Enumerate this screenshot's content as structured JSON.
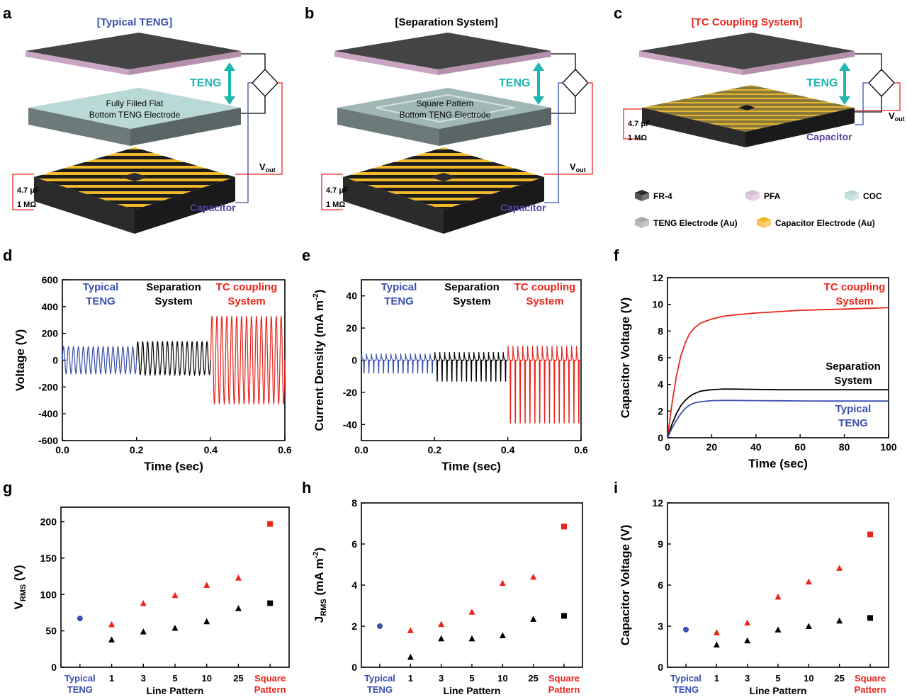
{
  "colors": {
    "typical": "#3a4fb0",
    "separation": "#000000",
    "tc": "#e8261c",
    "cyan": "#1fb6b0",
    "capacitor_label": "#5a3fa8",
    "fr4": "#2b2b2b",
    "pfa": "#d8bcd0",
    "coc": "#b8d8d6",
    "teng_elec": "#a8a8a8",
    "cap_elec": "#f2b82a"
  },
  "panels": {
    "a": {
      "letter": "a",
      "title": "[Typical TENG]",
      "teng": "TENG",
      "electrode_line1": "Fully Filled Flat",
      "electrode_line2": "Bottom TENG Electrode",
      "vout_v": "V",
      "vout_sub": "out",
      "cap_label": "Capacitor",
      "c_value": "4.7 μF",
      "r_value": "1 MΩ"
    },
    "b": {
      "letter": "b",
      "title": "[Separation System]",
      "teng": "TENG",
      "electrode_line1": "Square Pattern",
      "electrode_line2": "Bottom TENG Electrode",
      "vout_v": "V",
      "vout_sub": "out",
      "cap_label": "Capacitor",
      "c_value": "4.7 μF",
      "r_value": "1 MΩ"
    },
    "c": {
      "letter": "c",
      "title": "[TC Coupling System]",
      "teng": "TENG",
      "vout_v": "V",
      "vout_sub": "out",
      "cap_label": "Capacitor",
      "c_value": "4.7 μF",
      "r_value": "1 MΩ"
    }
  },
  "legend_c": [
    {
      "label": "FR-4",
      "color_key": "fr4"
    },
    {
      "label": "PFA",
      "color_key": "pfa"
    },
    {
      "label": "COC",
      "color_key": "coc"
    },
    {
      "label": "TENG Electrode (Au)",
      "color_key": "teng_elec"
    },
    {
      "label": "Capacitor Electrode (Au)",
      "color_key": "cap_elec"
    }
  ],
  "chart_data": [
    {
      "panel": "d",
      "type": "line",
      "ylabel": "Voltage (V)",
      "xlabel": "Time (sec)",
      "xlim": [
        0.0,
        0.6
      ],
      "ylim": [
        -600,
        600
      ],
      "xticks": [
        "0.0",
        "0.2",
        "0.4",
        "0.6"
      ],
      "yticks": [
        "-600",
        "-400",
        "-200",
        "0",
        "200",
        "400",
        "600"
      ],
      "series": [
        {
          "group": "Typical TENG",
          "x_range": [
            0.0,
            0.2
          ],
          "cycles": 15,
          "max": 100,
          "min": -100
        },
        {
          "group": "Separation System",
          "x_range": [
            0.2,
            0.4
          ],
          "cycles": 15,
          "max": 140,
          "min": -110
        },
        {
          "group": "TC coupling System",
          "x_range": [
            0.4,
            0.6
          ],
          "cycles": 15,
          "max": 330,
          "min": -330
        }
      ],
      "labels": [
        {
          "line1": "Typical",
          "line2": "TENG",
          "color_key": "typical"
        },
        {
          "line1": "Separation",
          "line2": "System",
          "color_key": "separation"
        },
        {
          "line1": "TC coupling",
          "line2": "System",
          "color_key": "tc"
        }
      ]
    },
    {
      "panel": "e",
      "type": "line",
      "ylabel_main": "Current Density (mA m",
      "ylabel_sup": "-2",
      "ylabel_end": ")",
      "xlabel": "Time (sec)",
      "xlim": [
        0.0,
        0.6
      ],
      "ylim": [
        -50,
        50
      ],
      "xticks": [
        "0.0",
        "0.2",
        "0.4",
        "0.6"
      ],
      "yticks": [
        "-40",
        "-20",
        "0",
        "20",
        "40"
      ],
      "series": [
        {
          "group": "Typical TENG",
          "x_range": [
            0.0,
            0.2
          ],
          "cycles": 15,
          "max": 4,
          "min": -8
        },
        {
          "group": "Separation System",
          "x_range": [
            0.2,
            0.4
          ],
          "cycles": 15,
          "max": 5,
          "min": -13
        },
        {
          "group": "TC coupling System",
          "x_range": [
            0.4,
            0.6
          ],
          "cycles": 15,
          "max": 9,
          "min": -39
        }
      ],
      "labels": [
        {
          "line1": "Typical",
          "line2": "TENG",
          "color_key": "typical"
        },
        {
          "line1": "Separation",
          "line2": "System",
          "color_key": "separation"
        },
        {
          "line1": "TC coupling",
          "line2": "System",
          "color_key": "tc"
        }
      ]
    },
    {
      "panel": "f",
      "type": "line",
      "ylabel": "Capacitor Voltage (V)",
      "xlabel": "Time (sec)",
      "xlim": [
        0,
        100
      ],
      "ylim": [
        0,
        12
      ],
      "xticks": [
        "0",
        "20",
        "40",
        "60",
        "80",
        "100"
      ],
      "yticks": [
        "0",
        "2",
        "4",
        "6",
        "8",
        "10",
        "12"
      ],
      "series": [
        {
          "group": "TC coupling System",
          "x": [
            0,
            2,
            4,
            6,
            8,
            10,
            12,
            15,
            20,
            25,
            30,
            40,
            50,
            60,
            70,
            80,
            90,
            100
          ],
          "y": [
            0,
            2.5,
            4.6,
            6.1,
            7.1,
            7.8,
            8.2,
            8.6,
            8.9,
            9.1,
            9.2,
            9.35,
            9.45,
            9.55,
            9.6,
            9.65,
            9.7,
            9.75
          ]
        },
        {
          "group": "Separation System",
          "x": [
            0,
            2,
            4,
            6,
            8,
            10,
            12,
            15,
            20,
            25,
            30,
            40,
            50,
            60,
            70,
            80,
            90,
            100
          ],
          "y": [
            0,
            1.0,
            1.8,
            2.4,
            2.8,
            3.1,
            3.3,
            3.5,
            3.6,
            3.65,
            3.65,
            3.62,
            3.6,
            3.6,
            3.6,
            3.6,
            3.6,
            3.6
          ]
        },
        {
          "group": "Typical TENG",
          "x": [
            0,
            2,
            4,
            6,
            8,
            10,
            12,
            15,
            20,
            25,
            30,
            40,
            50,
            60,
            70,
            80,
            90,
            100
          ],
          "y": [
            0,
            0.7,
            1.3,
            1.8,
            2.2,
            2.45,
            2.6,
            2.7,
            2.78,
            2.8,
            2.8,
            2.78,
            2.77,
            2.76,
            2.75,
            2.75,
            2.75,
            2.75
          ]
        }
      ],
      "labels": [
        {
          "line1": "TC coupling",
          "line2": "System",
          "color_key": "tc"
        },
        {
          "line1": "Separation",
          "line2": "System",
          "color_key": "separation"
        },
        {
          "line1": "Typical",
          "line2": "TENG",
          "color_key": "typical"
        }
      ]
    },
    {
      "panel": "g",
      "type": "scatter",
      "ylabel_main": "V",
      "ylabel_sub": "RMS",
      "ylabel_end": " (V)",
      "xlabel": "Line Pattern",
      "ylim": [
        0,
        220
      ],
      "yticks": [
        "0",
        "50",
        "100",
        "150",
        "200"
      ],
      "categories": [
        "Typical TENG",
        "1",
        "3",
        "5",
        "10",
        "25",
        "Square Pattern"
      ],
      "cat_lines": [
        [
          "Typical",
          "TENG"
        ],
        [
          "1"
        ],
        [
          "3"
        ],
        [
          "5"
        ],
        [
          "10"
        ],
        [
          "25"
        ],
        [
          "Square",
          "Pattern"
        ]
      ],
      "series": [
        {
          "group": "Typical TENG",
          "points": [
            [
              0,
              67
            ]
          ]
        },
        {
          "group": "Line pattern TC",
          "points": [
            [
              1,
              59
            ],
            [
              2,
              88
            ],
            [
              3,
              99
            ],
            [
              4,
              113
            ],
            [
              5,
              123
            ]
          ]
        },
        {
          "group": "Line pattern separation",
          "points": [
            [
              1,
              38
            ],
            [
              2,
              49
            ],
            [
              3,
              54
            ],
            [
              4,
              63
            ],
            [
              5,
              81
            ]
          ]
        },
        {
          "group": "Square pattern TC",
          "points": [
            [
              6,
              197
            ]
          ]
        },
        {
          "group": "Square pattern separation",
          "points": [
            [
              6,
              88
            ]
          ]
        }
      ]
    },
    {
      "panel": "h",
      "type": "scatter",
      "ylabel_main": "J",
      "ylabel_sub": "RMS",
      "ylabel_mid": " (mA m",
      "ylabel_sup": "-2",
      "ylabel_end": ")",
      "xlabel": "Line Pattern",
      "ylim": [
        0,
        8
      ],
      "yticks": [
        "0",
        "2",
        "4",
        "6",
        "8"
      ],
      "categories": [
        "Typical TENG",
        "1",
        "3",
        "5",
        "10",
        "25",
        "Square Pattern"
      ],
      "cat_lines": [
        [
          "Typical",
          "TENG"
        ],
        [
          "1"
        ],
        [
          "3"
        ],
        [
          "5"
        ],
        [
          "10"
        ],
        [
          "25"
        ],
        [
          "Square",
          "Pattern"
        ]
      ],
      "series": [
        {
          "group": "Typical TENG",
          "points": [
            [
              0,
              2.0
            ]
          ]
        },
        {
          "group": "Line pattern TC",
          "points": [
            [
              1,
              1.8
            ],
            [
              2,
              2.1
            ],
            [
              3,
              2.7
            ],
            [
              4,
              4.1
            ],
            [
              5,
              4.4
            ]
          ]
        },
        {
          "group": "Line pattern separation",
          "points": [
            [
              1,
              0.5
            ],
            [
              2,
              1.4
            ],
            [
              3,
              1.4
            ],
            [
              4,
              1.55
            ],
            [
              5,
              2.35
            ]
          ]
        },
        {
          "group": "Square pattern TC",
          "points": [
            [
              6,
              6.85
            ]
          ]
        },
        {
          "group": "Square pattern separation",
          "points": [
            [
              6,
              2.5
            ]
          ]
        }
      ]
    },
    {
      "panel": "i",
      "type": "scatter",
      "ylabel": "Capacitor Voltage (V)",
      "xlabel": "Line Pattern",
      "ylim": [
        0,
        12
      ],
      "yticks": [
        "0",
        "3",
        "6",
        "9",
        "12"
      ],
      "categories": [
        "Typical TENG",
        "1",
        "3",
        "5",
        "10",
        "25",
        "Square Pattern"
      ],
      "cat_lines": [
        [
          "Typical",
          "TENG"
        ],
        [
          "1"
        ],
        [
          "3"
        ],
        [
          "5"
        ],
        [
          "10"
        ],
        [
          "25"
        ],
        [
          "Square",
          "Pattern"
        ]
      ],
      "series": [
        {
          "group": "Typical TENG",
          "points": [
            [
              0,
              2.75
            ]
          ]
        },
        {
          "group": "Line pattern TC",
          "points": [
            [
              1,
              2.55
            ],
            [
              2,
              3.25
            ],
            [
              3,
              5.15
            ],
            [
              4,
              6.25
            ],
            [
              5,
              7.25
            ]
          ]
        },
        {
          "group": "Line pattern separation",
          "points": [
            [
              1,
              1.65
            ],
            [
              2,
              1.95
            ],
            [
              3,
              2.75
            ],
            [
              4,
              3.0
            ],
            [
              5,
              3.4
            ]
          ]
        },
        {
          "group": "Square pattern TC",
          "points": [
            [
              6,
              9.7
            ]
          ]
        },
        {
          "group": "Square pattern separation",
          "points": [
            [
              6,
              3.6
            ]
          ]
        }
      ]
    }
  ]
}
